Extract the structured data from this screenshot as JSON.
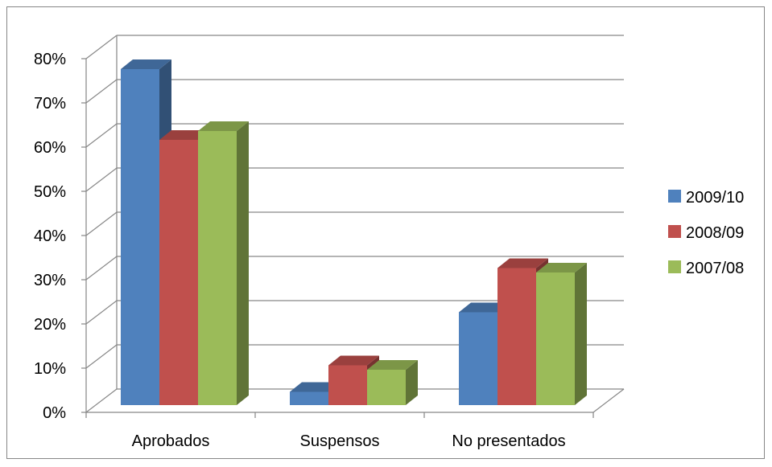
{
  "chart_data": {
    "type": "bar",
    "categories": [
      "Aprobados",
      "Suspensos",
      "No presentados"
    ],
    "series": [
      {
        "name": "2009/10",
        "values": [
          76,
          3,
          21
        ],
        "color": "#4F81BD"
      },
      {
        "name": "2008/09",
        "values": [
          60,
          9,
          31
        ],
        "color": "#C0504D"
      },
      {
        "name": "2007/08",
        "values": [
          62,
          8,
          30
        ],
        "color": "#9BBB59"
      }
    ],
    "y_ticks": [
      "0%",
      "10%",
      "20%",
      "30%",
      "40%",
      "50%",
      "60%",
      "70%",
      "80%"
    ],
    "ylim": [
      0,
      80
    ],
    "y_unit": "%",
    "title": "",
    "xlabel": "",
    "ylabel": "",
    "grid": true,
    "legend_position": "right",
    "style": "3d-clustered-column"
  }
}
